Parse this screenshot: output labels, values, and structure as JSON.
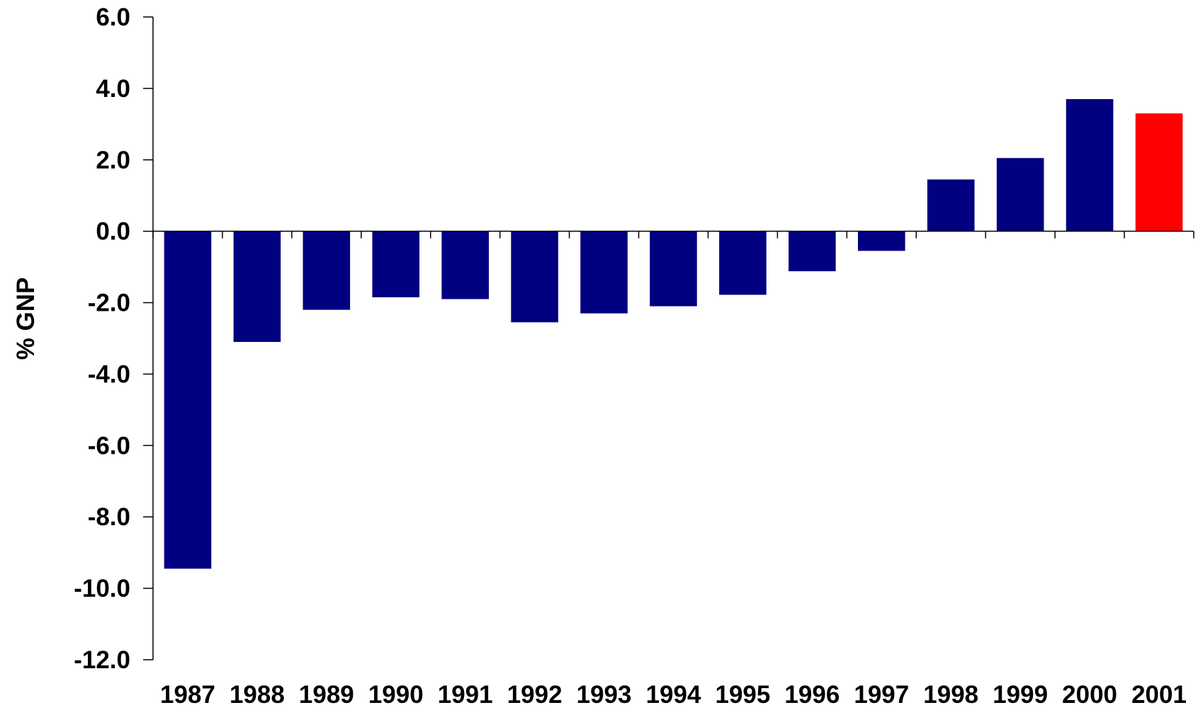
{
  "chart_data": {
    "type": "bar",
    "title": "",
    "xlabel": "",
    "ylabel": "% GNP",
    "categories": [
      "1987",
      "1988",
      "1989",
      "1990",
      "1991",
      "1992",
      "1993",
      "1994",
      "1995",
      "1996",
      "1997",
      "1998",
      "1999",
      "2000",
      "2001"
    ],
    "values": [
      -9.45,
      -3.1,
      -2.2,
      -1.85,
      -1.9,
      -2.55,
      -2.3,
      -2.1,
      -1.78,
      -1.12,
      -0.55,
      1.45,
      2.05,
      3.7,
      3.3
    ],
    "ylim": [
      -12.0,
      6.0
    ],
    "yticks": [
      6.0,
      4.0,
      2.0,
      0.0,
      -2.0,
      -4.0,
      -6.0,
      -8.0,
      -10.0,
      -12.0
    ],
    "ytick_labels": [
      "6.0",
      "4.0",
      "2.0",
      "0.0",
      "-2.0",
      "-4.0",
      "-6.0",
      "-8.0",
      "-10.0",
      "-12.0"
    ],
    "bar_colors": [
      "#000080",
      "#000080",
      "#000080",
      "#000080",
      "#000080",
      "#000080",
      "#000080",
      "#000080",
      "#000080",
      "#000080",
      "#000080",
      "#000080",
      "#000080",
      "#000080",
      "#FF0000"
    ],
    "grid": false,
    "legend": "none"
  }
}
